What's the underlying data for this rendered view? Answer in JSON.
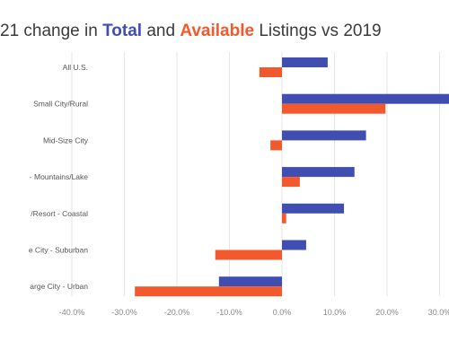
{
  "chart_data": {
    "type": "bar",
    "orientation": "horizontal",
    "title": {
      "prefix": "21 change in ",
      "kw_total": "Total",
      "middle": " and ",
      "kw_available": "Available",
      "suffix": " Listings vs 2019"
    },
    "categories": [
      "All U.S.",
      "Small City/Rural",
      "Mid-Size City",
      "- Mountains/Lake",
      "/Resort - Coastal",
      "e City - Suburban",
      "arge City - Urban"
    ],
    "series": [
      {
        "name": "Total",
        "color": "#3f4eb0",
        "values": [
          8.7,
          32.0,
          16.0,
          13.8,
          11.8,
          4.6,
          -12.0
        ]
      },
      {
        "name": "Available",
        "color": "#f2592c",
        "values": [
          -4.3,
          19.7,
          -2.2,
          3.4,
          0.8,
          -12.7,
          -28.0
        ]
      }
    ],
    "xlim": [
      -40,
      30
    ],
    "x_ticks": [
      -40,
      -30,
      -20,
      -10,
      0,
      10,
      20,
      30
    ],
    "x_tick_labels": [
      "-40.0%",
      "-30.0%",
      "-20.0%",
      "-10.0%",
      "0.0%",
      "10.0%",
      "20.0%",
      "30.0%"
    ],
    "grid": true,
    "legend": "none"
  }
}
